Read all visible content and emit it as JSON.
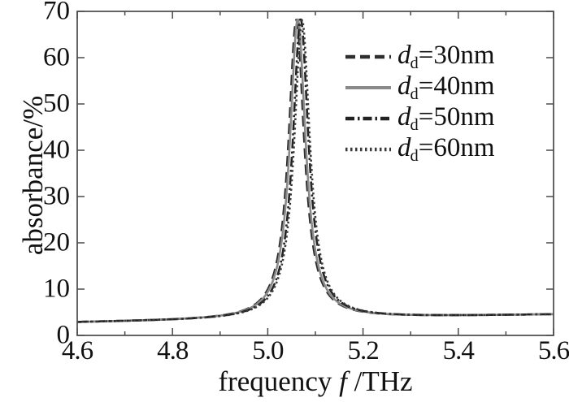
{
  "chart_data": {
    "type": "line",
    "title": "",
    "xlabel_prefix": "frequency ",
    "xlabel_symbol": "f",
    "xlabel_suffix": " /THz",
    "ylabel": "absorbance/%",
    "xlim": [
      4.6,
      5.6
    ],
    "ylim": [
      0,
      70
    ],
    "x_major_ticks": [
      4.6,
      4.8,
      5.0,
      5.2,
      5.4,
      5.6
    ],
    "x_tick_labels": [
      "4.6",
      "4.8",
      "5.0",
      "5.2",
      "5.4",
      "5.6"
    ],
    "x_minor_ticks": [
      4.7,
      4.9,
      5.1,
      5.3,
      5.5
    ],
    "y_major_ticks": [
      0,
      10,
      20,
      30,
      40,
      50,
      60,
      70
    ],
    "y_tick_labels": [
      "0",
      "10",
      "20",
      "30",
      "40",
      "50",
      "60",
      "70"
    ],
    "grid": false,
    "frame_color": "#4a4a4a",
    "text_color": "#111111",
    "legend_position": "upper-right-inside",
    "baseline": {
      "start_value": 2.8,
      "end_value": 4.5
    },
    "resonance_width_gamma": 0.02,
    "series": [
      {
        "name": "dd=30nm",
        "style": "dashed",
        "color": "#2e2e2e",
        "dash": "13 7",
        "peak_frequency": 5.06,
        "peak_absorbance": 68.2
      },
      {
        "name": "dd=40nm",
        "style": "solid",
        "color": "#8a8a8a",
        "dash": "",
        "peak_frequency": 5.063,
        "peak_absorbance": 68.4
      },
      {
        "name": "dd=50nm",
        "style": "dash-dot",
        "color": "#222222",
        "dash": "12 4 2.5 4",
        "peak_frequency": 5.069,
        "peak_absorbance": 68.4
      },
      {
        "name": "dd=60nm",
        "style": "dotted",
        "color": "#3a3a3a",
        "dash": "2.4 3.4",
        "peak_frequency": 5.072,
        "peak_absorbance": 68.1
      }
    ],
    "sampled_points": {
      "f": [
        4.6,
        4.7,
        4.8,
        4.9,
        5.0,
        5.05,
        5.065,
        5.08,
        5.1,
        5.2,
        5.3,
        5.4,
        5.5,
        5.6
      ],
      "absorbance_typical": [
        2.9,
        3.2,
        3.5,
        4.2,
        9.1,
        44.0,
        68.2,
        31.0,
        19.5,
        5.1,
        4.6,
        4.5,
        4.5,
        4.6
      ]
    }
  },
  "legend": {
    "items": [
      {
        "symbol": "d",
        "subscript": "d",
        "value": "=30nm",
        "sample_dash": "12 6"
      },
      {
        "symbol": "d",
        "subscript": "d",
        "value": "=40nm",
        "sample_dash": ""
      },
      {
        "symbol": "d",
        "subscript": "d",
        "value": "=50nm",
        "sample_dash": "11 4 2.5 4"
      },
      {
        "symbol": "d",
        "subscript": "d",
        "value": "=60nm",
        "sample_dash": "2.5 3.5"
      }
    ]
  }
}
